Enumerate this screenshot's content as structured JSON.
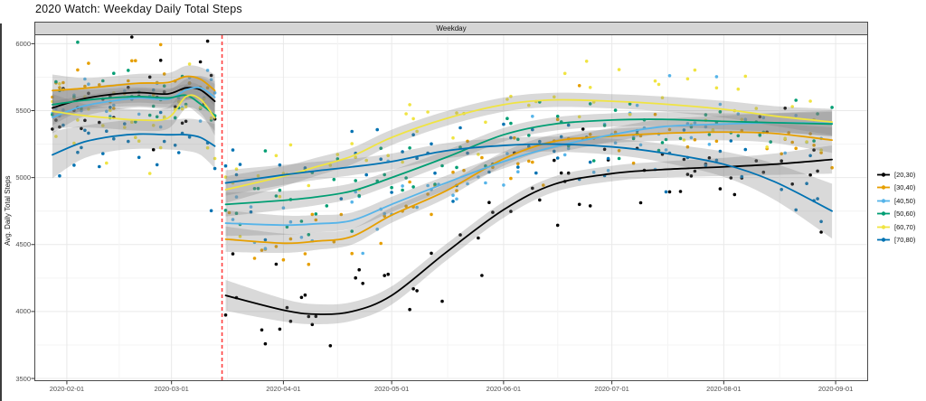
{
  "title": "2020 Watch: Weekday Daily Total Steps",
  "facet_label": "Weekday",
  "chart_data": {
    "type": "scatter",
    "smoother": "loess",
    "title": "2020 Watch: Weekday Daily Total Steps",
    "xlabel": "",
    "ylabel": "Avg. Daily Total Steps",
    "facet": "Weekday",
    "grid": "on",
    "legend_position": "right",
    "x_domain": [
      "2020-01-23",
      "2020-09-10"
    ],
    "y_domain": [
      3480,
      6070
    ],
    "x_ticks": [
      "2020-02-01",
      "2020-03-01",
      "2020-04-01",
      "2020-05-01",
      "2020-06-01",
      "2020-07-01",
      "2020-08-01",
      "2020-09-01"
    ],
    "y_ticks": [
      3500,
      4000,
      4500,
      5000,
      5500,
      6000
    ],
    "vline": {
      "date": "2020-03-15",
      "style": "dashed",
      "color": "#ff4040"
    },
    "band_fill": "rgba(128,128,128,0.30)",
    "grid_major_color": "#e9e9e9",
    "grid_minor_color": "#f4f4f4",
    "series": [
      {
        "name": "[20,30)",
        "color": "#000000",
        "scatter_sd": 180,
        "segments": [
          {
            "dates": [
              "2020-01-28",
              "2020-02-05",
              "2020-02-13",
              "2020-02-21",
              "2020-02-29",
              "2020-03-05",
              "2020-03-09",
              "2020-03-13"
            ],
            "values": [
              5520,
              5585,
              5620,
              5635,
              5625,
              5670,
              5655,
              5570
            ],
            "band_halfwidth": [
              130,
              85,
              75,
              75,
              75,
              85,
              95,
              130
            ]
          },
          {
            "dates": [
              "2020-03-16",
              "2020-04-01",
              "2020-04-10",
              "2020-04-20",
              "2020-05-01",
              "2020-05-16",
              "2020-06-01",
              "2020-06-15",
              "2020-07-01",
              "2020-07-15",
              "2020-08-01",
              "2020-08-15",
              "2020-08-31"
            ],
            "values": [
              4120,
              4010,
              3980,
              4000,
              4120,
              4440,
              4760,
              4950,
              5030,
              5060,
              5080,
              5100,
              5135
            ],
            "band_halfwidth": [
              115,
              85,
              75,
              70,
              68,
              62,
              60,
              58,
              58,
              60,
              68,
              80,
              105
            ]
          }
        ]
      },
      {
        "name": "[30,40)",
        "color": "#E69F00",
        "scatter_sd": 150,
        "segments": [
          {
            "dates": [
              "2020-01-28",
              "2020-02-05",
              "2020-02-13",
              "2020-02-21",
              "2020-02-29",
              "2020-03-05",
              "2020-03-09",
              "2020-03-13"
            ],
            "values": [
              5650,
              5665,
              5685,
              5705,
              5710,
              5755,
              5735,
              5650
            ],
            "band_halfwidth": [
              120,
              80,
              70,
              70,
              70,
              80,
              90,
              120
            ]
          },
          {
            "dates": [
              "2020-03-16",
              "2020-04-01",
              "2020-04-10",
              "2020-04-20",
              "2020-05-01",
              "2020-05-16",
              "2020-06-01",
              "2020-06-15",
              "2020-07-01",
              "2020-07-15",
              "2020-08-01",
              "2020-08-15",
              "2020-08-31"
            ],
            "values": [
              4540,
              4510,
              4525,
              4560,
              4720,
              4900,
              5140,
              5270,
              5310,
              5330,
              5340,
              5330,
              5280
            ],
            "band_halfwidth": [
              95,
              72,
              65,
              60,
              57,
              54,
              52,
              52,
              52,
              55,
              62,
              72,
              95
            ]
          }
        ]
      },
      {
        "name": "[40,50)",
        "color": "#56B4E9",
        "scatter_sd": 150,
        "segments": [
          {
            "dates": [
              "2020-01-28",
              "2020-02-05",
              "2020-02-13",
              "2020-02-21",
              "2020-02-29",
              "2020-03-05",
              "2020-03-09",
              "2020-03-13"
            ],
            "values": [
              5450,
              5530,
              5570,
              5595,
              5585,
              5655,
              5670,
              5600
            ],
            "band_halfwidth": [
              120,
              80,
              70,
              70,
              70,
              80,
              90,
              120
            ]
          },
          {
            "dates": [
              "2020-03-16",
              "2020-04-01",
              "2020-04-10",
              "2020-04-20",
              "2020-05-01",
              "2020-05-16",
              "2020-06-01",
              "2020-06-15",
              "2020-07-01",
              "2020-07-15",
              "2020-08-01",
              "2020-08-15",
              "2020-08-31"
            ],
            "values": [
              4660,
              4645,
              4655,
              4680,
              4800,
              4960,
              5120,
              5230,
              5320,
              5380,
              5400,
              5410,
              5405
            ],
            "band_halfwidth": [
              95,
              72,
              65,
              60,
              57,
              54,
              52,
              52,
              52,
              55,
              62,
              72,
              95
            ]
          }
        ]
      },
      {
        "name": "[50,60)",
        "color": "#009E73",
        "scatter_sd": 145,
        "segments": [
          {
            "dates": [
              "2020-01-28",
              "2020-02-05",
              "2020-02-13",
              "2020-02-21",
              "2020-02-29",
              "2020-03-05",
              "2020-03-09",
              "2020-03-13"
            ],
            "values": [
              5545,
              5575,
              5595,
              5605,
              5595,
              5615,
              5550,
              5465
            ],
            "band_halfwidth": [
              115,
              80,
              70,
              70,
              70,
              80,
              90,
              115
            ]
          },
          {
            "dates": [
              "2020-03-16",
              "2020-04-01",
              "2020-04-10",
              "2020-04-20",
              "2020-05-01",
              "2020-05-16",
              "2020-06-01",
              "2020-06-15",
              "2020-07-01",
              "2020-07-15",
              "2020-08-01",
              "2020-08-15",
              "2020-08-31"
            ],
            "values": [
              4800,
              4830,
              4855,
              4900,
              5000,
              5150,
              5320,
              5400,
              5430,
              5435,
              5420,
              5410,
              5400
            ],
            "band_halfwidth": [
              90,
              70,
              62,
              58,
              55,
              52,
              50,
              50,
              50,
              53,
              60,
              70,
              92
            ]
          }
        ]
      },
      {
        "name": "[60,70)",
        "color": "#F0E442",
        "scatter_sd": 160,
        "segments": [
          {
            "dates": [
              "2020-01-28",
              "2020-02-05",
              "2020-02-13",
              "2020-02-21",
              "2020-02-29",
              "2020-03-05",
              "2020-03-09",
              "2020-03-13"
            ],
            "values": [
              5495,
              5465,
              5445,
              5430,
              5445,
              5605,
              5585,
              5445
            ],
            "band_halfwidth": [
              130,
              90,
              80,
              80,
              80,
              90,
              100,
              130
            ]
          },
          {
            "dates": [
              "2020-03-16",
              "2020-04-01",
              "2020-04-10",
              "2020-04-20",
              "2020-05-01",
              "2020-05-16",
              "2020-06-01",
              "2020-06-15",
              "2020-07-01",
              "2020-07-15",
              "2020-08-01",
              "2020-08-15",
              "2020-08-31"
            ],
            "values": [
              4910,
              5010,
              5080,
              5160,
              5300,
              5440,
              5545,
              5580,
              5570,
              5550,
              5510,
              5460,
              5415
            ],
            "band_halfwidth": [
              100,
              75,
              68,
              62,
              58,
              55,
              53,
              53,
              53,
              56,
              63,
              74,
              98
            ]
          }
        ]
      },
      {
        "name": "[70,80)",
        "color": "#0072B2",
        "scatter_sd": 165,
        "segments": [
          {
            "dates": [
              "2020-01-28",
              "2020-02-05",
              "2020-02-13",
              "2020-02-21",
              "2020-02-29",
              "2020-03-05",
              "2020-03-09",
              "2020-03-13"
            ],
            "values": [
              5170,
              5260,
              5305,
              5325,
              5320,
              5320,
              5300,
              5235
            ],
            "band_halfwidth": [
              175,
              125,
              110,
              110,
              110,
              120,
              130,
              165
            ]
          },
          {
            "dates": [
              "2020-03-16",
              "2020-04-01",
              "2020-04-10",
              "2020-04-20",
              "2020-05-01",
              "2020-05-16",
              "2020-06-01",
              "2020-06-15",
              "2020-07-01",
              "2020-07-15",
              "2020-08-01",
              "2020-08-15",
              "2020-08-31"
            ],
            "values": [
              4960,
              5020,
              5050,
              5080,
              5120,
              5200,
              5240,
              5250,
              5230,
              5185,
              5100,
              4970,
              4750
            ],
            "band_halfwidth": [
              95,
              75,
              68,
              62,
              60,
              57,
              55,
              56,
              60,
              70,
              95,
              135,
              205
            ]
          }
        ]
      }
    ],
    "scatter": {
      "seed": 11,
      "weekdays_only": true,
      "point_prob": [
        0.78,
        0.56
      ],
      "point_radius": 1.8
    }
  },
  "legend": {
    "entries": [
      {
        "label": "[20,30)",
        "color": "#000000"
      },
      {
        "label": "[30,40)",
        "color": "#E69F00"
      },
      {
        "label": "[40,50)",
        "color": "#56B4E9"
      },
      {
        "label": "[50,60)",
        "color": "#009E73"
      },
      {
        "label": "[60,70)",
        "color": "#F0E442"
      },
      {
        "label": "[70,80)",
        "color": "#0072B2"
      }
    ]
  }
}
